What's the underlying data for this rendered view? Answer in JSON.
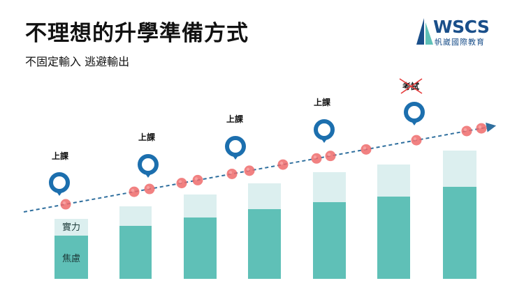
{
  "title": "不理想的升學準備方式",
  "subtitle": "不固定輸入  逃避輸出",
  "logo": {
    "word": "WSCS",
    "subtitle": "帆崴國際教育"
  },
  "bar_labels": {
    "top": "實力",
    "bottom": "焦慮"
  },
  "markers": [
    {
      "label": "上課",
      "crossed": false
    },
    {
      "label": "上課",
      "crossed": false
    },
    {
      "label": "上課",
      "crossed": false
    },
    {
      "label": "上課",
      "crossed": false
    },
    {
      "label": "考試",
      "crossed": true
    }
  ],
  "colors": {
    "bar_light": "#dcefef",
    "bar_dark": "#5fc0b7",
    "pin": "#1c6fae",
    "trend": "#2f6f9e",
    "dot": "#ef6b6b",
    "cross": "#e63b3b",
    "logo": "#1a4f8a"
  }
}
